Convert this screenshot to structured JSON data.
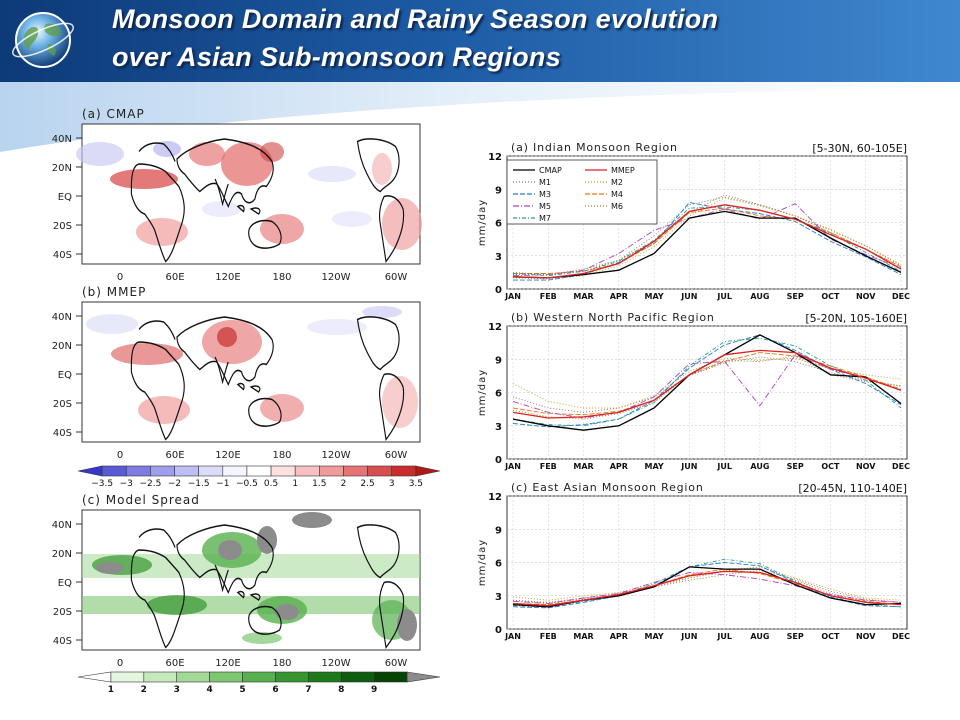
{
  "title": {
    "line1": "Monsoon Domain and Rainy Season evolution",
    "line2": "over Asian Sub-monsoon Regions"
  },
  "colors": {
    "header_dark": "#0d3a78",
    "header_light": "#3f88cf",
    "title_text": "#ffffff"
  },
  "icons": {
    "logo": "globe-icon"
  },
  "maps": {
    "panels": [
      {
        "label": "(a) CMAP"
      },
      {
        "label": "(b) MMEP"
      },
      {
        "label": "(c) Model Spread"
      }
    ],
    "lat_labels": [
      "40N",
      "20N",
      "EQ",
      "20S",
      "40S"
    ],
    "lon_labels": [
      "0",
      "60E",
      "120E",
      "180",
      "120W",
      "60W"
    ],
    "colorbar1": {
      "labels": [
        "−3.5",
        "−3",
        "−2.5",
        "−2",
        "−1.5",
        "−1",
        "−0.5",
        "0.5",
        "1",
        "1.5",
        "2",
        "2.5",
        "3",
        "3.5"
      ],
      "colors": [
        "#3838c8",
        "#5a5ad6",
        "#7c7ce2",
        "#9e9eec",
        "#bebef4",
        "#dcdcfa",
        "#f5f5ff",
        "#ffffff",
        "#fde0e0",
        "#f8c0c0",
        "#f09a9a",
        "#e67474",
        "#d84e4e",
        "#c82c2c",
        "#b01818"
      ]
    },
    "colorbar2": {
      "labels": [
        "1",
        "2",
        "3",
        "4",
        "5",
        "6",
        "7",
        "8",
        "9"
      ],
      "colors": [
        "#ffffff",
        "#e4f5e0",
        "#c6e8bd",
        "#a3d898",
        "#7ec672",
        "#57b04e",
        "#36952f",
        "#1c7a1a",
        "#0e5c0e",
        "#064406",
        "#8c8c8c"
      ]
    }
  },
  "chart_data": [
    {
      "type": "line",
      "title": "(a) Indian Monsoon Region",
      "region": "[5-30N, 60-105E]",
      "ylabel": "mm/day",
      "ylim": [
        0,
        12
      ],
      "yticks": [
        "0",
        "3",
        "6",
        "9",
        "12"
      ],
      "months": [
        "JAN",
        "FEB",
        "MAR",
        "APR",
        "MAY",
        "JUN",
        "JUL",
        "AUG",
        "SEP",
        "OCT",
        "NOV",
        "DEC"
      ],
      "legend": [
        {
          "name": "CMAP",
          "color": "#000000",
          "dash": ""
        },
        {
          "name": "MMEP",
          "color": "#e02020",
          "dash": ""
        },
        {
          "name": "M1",
          "color": "#777777",
          "dash": "1,2"
        },
        {
          "name": "M2",
          "color": "#c89a20",
          "dash": "1,2"
        },
        {
          "name": "M3",
          "color": "#2a7ad0",
          "dash": "5,2"
        },
        {
          "name": "M4",
          "color": "#e07a10",
          "dash": "5,2"
        },
        {
          "name": "M5",
          "color": "#b040c0",
          "dash": "6,2,1,2"
        },
        {
          "name": "M6",
          "color": "#9a7a3a",
          "dash": "1,2"
        },
        {
          "name": "M7",
          "color": "#20a090",
          "dash": "4,2,1,2"
        }
      ],
      "series": [
        {
          "name": "CMAP",
          "values": [
            1.1,
            1.0,
            1.3,
            1.7,
            3.2,
            6.4,
            7.0,
            6.4,
            6.4,
            4.6,
            3.0,
            1.5
          ]
        },
        {
          "name": "MMEP",
          "values": [
            1.1,
            1.0,
            1.4,
            2.3,
            4.3,
            7.0,
            7.6,
            7.1,
            6.3,
            4.9,
            3.6,
            1.8
          ]
        },
        {
          "name": "M1",
          "values": [
            1.3,
            1.3,
            1.6,
            2.6,
            4.8,
            7.6,
            8.3,
            7.6,
            6.6,
            5.1,
            3.6,
            2.0
          ]
        },
        {
          "name": "M2",
          "values": [
            1.0,
            0.9,
            1.2,
            2.1,
            3.8,
            6.6,
            8.2,
            7.5,
            6.6,
            5.4,
            3.9,
            2.2
          ]
        },
        {
          "name": "M3",
          "values": [
            0.8,
            0.8,
            1.3,
            2.4,
            4.1,
            7.8,
            7.2,
            6.8,
            6.1,
            4.3,
            2.9,
            1.3
          ]
        },
        {
          "name": "M4",
          "values": [
            1.4,
            1.4,
            1.6,
            2.3,
            4.1,
            6.9,
            7.3,
            6.6,
            6.3,
            5.1,
            3.6,
            2.0
          ]
        },
        {
          "name": "M5",
          "values": [
            1.2,
            1.3,
            1.7,
            3.2,
            5.3,
            6.4,
            7.2,
            6.3,
            7.7,
            4.5,
            3.1,
            1.9
          ]
        },
        {
          "name": "M6",
          "values": [
            1.5,
            1.3,
            1.8,
            2.6,
            4.3,
            6.9,
            8.5,
            7.6,
            6.6,
            5.3,
            3.9,
            2.1
          ]
        },
        {
          "name": "M7",
          "values": [
            1.4,
            1.2,
            1.6,
            2.5,
            4.4,
            7.3,
            7.4,
            7.1,
            6.3,
            5.0,
            3.3,
            1.6
          ]
        }
      ]
    },
    {
      "type": "line",
      "title": "(b) Western North Pacific Region",
      "region": "[5-20N, 105-160E]",
      "ylabel": "mm/day",
      "ylim": [
        0,
        12
      ],
      "yticks": [
        "0",
        "3",
        "6",
        "9",
        "12"
      ],
      "months": [
        "JAN",
        "FEB",
        "MAR",
        "APR",
        "MAY",
        "JUN",
        "JUL",
        "AUG",
        "SEP",
        "OCT",
        "NOV",
        "DEC"
      ],
      "series": [
        {
          "name": "CMAP",
          "values": [
            3.6,
            3.0,
            2.6,
            3.0,
            4.6,
            7.6,
            9.4,
            11.2,
            9.6,
            7.6,
            7.4,
            5.0
          ]
        },
        {
          "name": "MMEP",
          "values": [
            4.2,
            3.7,
            3.8,
            4.2,
            5.3,
            7.6,
            9.4,
            9.8,
            9.6,
            8.2,
            7.3,
            6.2
          ]
        },
        {
          "name": "M1",
          "values": [
            5.6,
            4.6,
            4.2,
            4.6,
            5.6,
            7.5,
            8.7,
            9.2,
            8.8,
            7.8,
            7.1,
            6.6
          ]
        },
        {
          "name": "M2",
          "values": [
            6.8,
            5.2,
            4.6,
            4.6,
            5.7,
            7.9,
            9.1,
            8.9,
            9.1,
            8.1,
            7.6,
            7.2
          ]
        },
        {
          "name": "M3",
          "values": [
            3.2,
            2.9,
            3.1,
            3.6,
            5.3,
            8.2,
            10.3,
            11.2,
            9.8,
            8.1,
            6.8,
            4.9
          ]
        },
        {
          "name": "M4",
          "values": [
            4.6,
            4.1,
            4.0,
            4.3,
            5.3,
            7.6,
            8.8,
            9.6,
            9.3,
            8.4,
            7.4,
            6.3
          ]
        },
        {
          "name": "M5",
          "values": [
            5.2,
            4.2,
            3.7,
            4.2,
            5.6,
            8.6,
            8.8,
            4.8,
            9.4,
            8.1,
            7.3,
            6.2
          ]
        },
        {
          "name": "M6",
          "values": [
            4.4,
            3.8,
            3.6,
            4.1,
            5.1,
            7.6,
            8.9,
            8.8,
            9.3,
            7.6,
            7.0,
            6.6
          ]
        },
        {
          "name": "M7",
          "values": [
            3.6,
            3.1,
            3.0,
            3.6,
            5.1,
            8.4,
            10.6,
            10.9,
            10.2,
            8.4,
            7.1,
            4.6
          ]
        }
      ]
    },
    {
      "type": "line",
      "title": "(c) East Asian Monsoon Region",
      "region": "[20-45N, 110-140E]",
      "ylabel": "mm/day",
      "ylim": [
        0,
        12
      ],
      "yticks": [
        "0",
        "3",
        "6",
        "9",
        "12"
      ],
      "months": [
        "JAN",
        "FEB",
        "MAR",
        "APR",
        "MAY",
        "JUN",
        "JUL",
        "AUG",
        "SEP",
        "OCT",
        "NOV",
        "DEC"
      ],
      "series": [
        {
          "name": "CMAP",
          "values": [
            2.2,
            2.0,
            2.6,
            3.0,
            3.8,
            5.6,
            5.4,
            5.4,
            4.0,
            2.8,
            2.2,
            2.3
          ]
        },
        {
          "name": "MMEP",
          "values": [
            2.3,
            2.1,
            2.6,
            3.1,
            3.9,
            4.8,
            5.2,
            5.1,
            4.2,
            3.0,
            2.4,
            2.2
          ]
        },
        {
          "name": "M1",
          "values": [
            2.6,
            2.4,
            2.8,
            3.2,
            3.8,
            4.6,
            5.2,
            5.6,
            4.4,
            3.2,
            2.6,
            2.4
          ]
        },
        {
          "name": "M2",
          "values": [
            2.9,
            2.6,
            3.0,
            3.3,
            4.0,
            4.6,
            5.3,
            5.6,
            4.6,
            3.6,
            2.8,
            2.6
          ]
        },
        {
          "name": "M3",
          "values": [
            2.0,
            1.9,
            2.4,
            3.0,
            3.9,
            5.6,
            6.0,
            5.7,
            4.2,
            2.8,
            2.1,
            2.0
          ]
        },
        {
          "name": "M4",
          "values": [
            2.3,
            2.2,
            2.6,
            3.1,
            3.9,
            4.9,
            5.4,
            5.0,
            4.1,
            3.0,
            2.5,
            2.2
          ]
        },
        {
          "name": "M5",
          "values": [
            2.5,
            2.3,
            2.8,
            3.2,
            4.2,
            5.1,
            4.9,
            4.5,
            3.9,
            3.1,
            2.6,
            2.4
          ]
        },
        {
          "name": "M6",
          "values": [
            2.6,
            2.3,
            2.7,
            3.1,
            3.8,
            4.4,
            4.9,
            5.3,
            4.5,
            3.4,
            2.7,
            2.4
          ]
        },
        {
          "name": "M7",
          "values": [
            2.1,
            2.0,
            2.5,
            3.0,
            4.1,
            5.6,
            6.3,
            5.9,
            4.3,
            2.9,
            2.2,
            2.0
          ]
        }
      ]
    }
  ]
}
